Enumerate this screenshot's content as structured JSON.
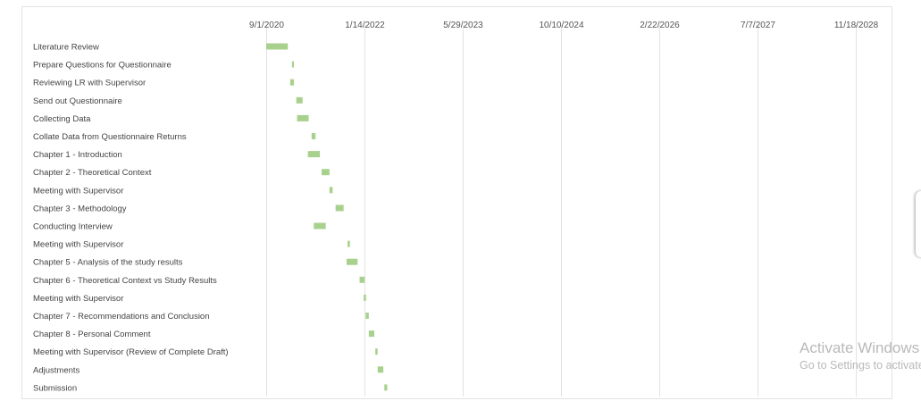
{
  "chart_data": {
    "type": "bar",
    "orientation": "horizontal-gantt",
    "x_tick_labels": [
      "9/1/2020",
      "1/14/2022",
      "5/29/2023",
      "10/10/2024",
      "2/22/2026",
      "7/7/2027",
      "11/18/2028"
    ],
    "xlim": [
      "2020-09-01",
      "2029-01-20"
    ],
    "grid": true,
    "bar_color": "#a9d18e",
    "tasks": [
      {
        "label": "Literature Review",
        "start": "2020-09-01",
        "end": "2020-12-20"
      },
      {
        "label": "Prepare Questions for Questionnaire",
        "start": "2021-01-10",
        "end": "2021-01-20"
      },
      {
        "label": "Reviewing LR with Supervisor",
        "start": "2021-01-01",
        "end": "2021-01-20"
      },
      {
        "label": "Send out Questionnaire",
        "start": "2021-02-01",
        "end": "2021-03-05"
      },
      {
        "label": "Collecting Data",
        "start": "2021-02-05",
        "end": "2021-04-05"
      },
      {
        "label": "Collate Data from Questionnaire Returns",
        "start": "2021-04-20",
        "end": "2021-05-10"
      },
      {
        "label": "Chapter 1 - Introduction",
        "start": "2021-04-01",
        "end": "2021-06-01"
      },
      {
        "label": "Chapter 2 - Theoretical Context",
        "start": "2021-06-10",
        "end": "2021-07-20"
      },
      {
        "label": "Meeting with Supervisor",
        "start": "2021-07-20",
        "end": "2021-08-05"
      },
      {
        "label": "Chapter 3 - Methodology",
        "start": "2021-08-20",
        "end": "2021-09-30"
      },
      {
        "label": "Conducting Interview",
        "start": "2021-05-01",
        "end": "2021-07-01"
      },
      {
        "label": "Meeting with Supervisor",
        "start": "2021-10-20",
        "end": "2021-11-01"
      },
      {
        "label": "Chapter 5 - Analysis of the study results",
        "start": "2021-10-15",
        "end": "2021-12-10"
      },
      {
        "label": "Chapter 6 - Theoretical Context vs Study Results",
        "start": "2021-12-20",
        "end": "2022-01-15"
      },
      {
        "label": "Meeting with Supervisor",
        "start": "2022-01-10",
        "end": "2022-01-22"
      },
      {
        "label": "Chapter 7 - Recommendations and Conclusion",
        "start": "2022-01-20",
        "end": "2022-02-05"
      },
      {
        "label": "Chapter 8 - Personal Comment",
        "start": "2022-02-05",
        "end": "2022-03-05"
      },
      {
        "label": "Meeting with Supervisor (Review of Complete Draft)",
        "start": "2022-03-10",
        "end": "2022-03-22"
      },
      {
        "label": "Adjustments",
        "start": "2022-03-22",
        "end": "2022-04-20"
      },
      {
        "label": "Submission",
        "start": "2022-04-25",
        "end": "2022-05-10"
      }
    ]
  },
  "watermark": {
    "title": "Activate Windows",
    "subtitle": "Go to Settings to activate Windows."
  }
}
